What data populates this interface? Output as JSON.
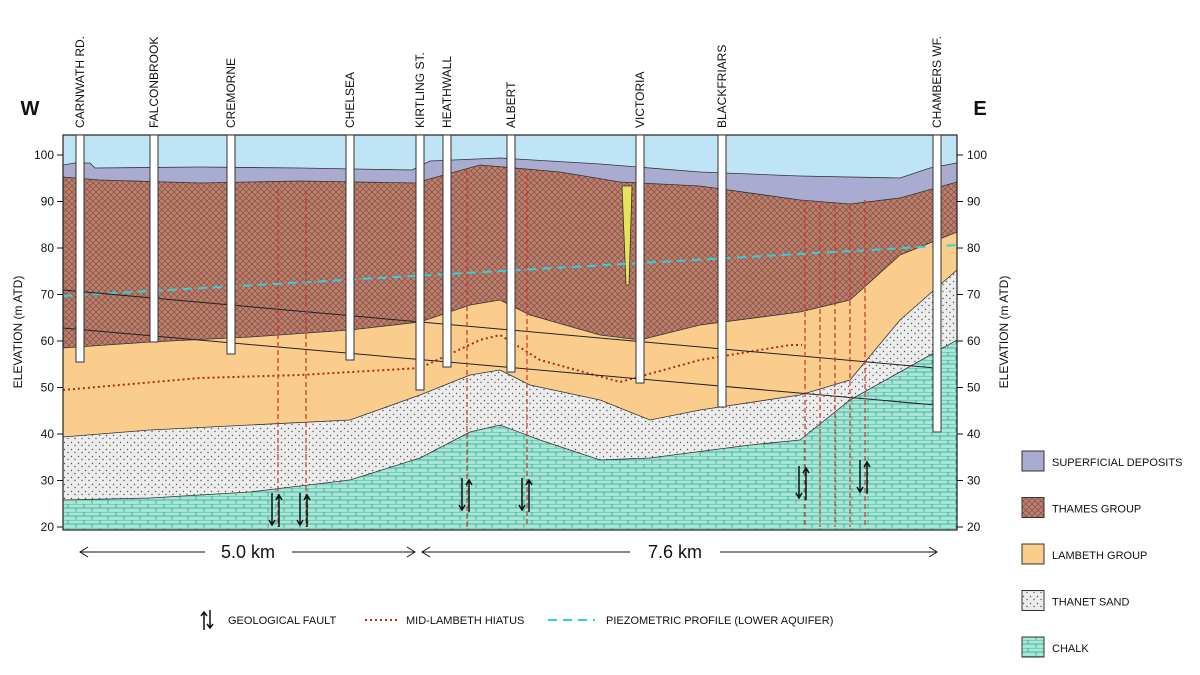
{
  "directions": {
    "west": "W",
    "east": "E"
  },
  "shafts": [
    "CARNWATH RD.",
    "FALCONBROOK",
    "CREMORNE",
    "CHELSEA",
    "KIRTLING ST.",
    "HEATHWALL",
    "ALBERT",
    "VICTORIA",
    "BLACKFRIARS",
    "CHAMBERS WF."
  ],
  "axis": {
    "label": "ELEVATION (m ATD)",
    "ticks": [
      20,
      30,
      40,
      50,
      60,
      70,
      80,
      90,
      100
    ]
  },
  "distances": [
    "5.0 km",
    "7.6 km"
  ],
  "key": [
    "GEOLOGICAL FAULT",
    "MID-LAMBETH HIATUS",
    "PIEZOMETRIC PROFILE (LOWER AQUIFER)"
  ],
  "legend": [
    "SUPERFICIAL DEPOSITS",
    "THAMES GROUP",
    "LAMBETH GROUP",
    "THANET SAND",
    "CHALK"
  ]
}
